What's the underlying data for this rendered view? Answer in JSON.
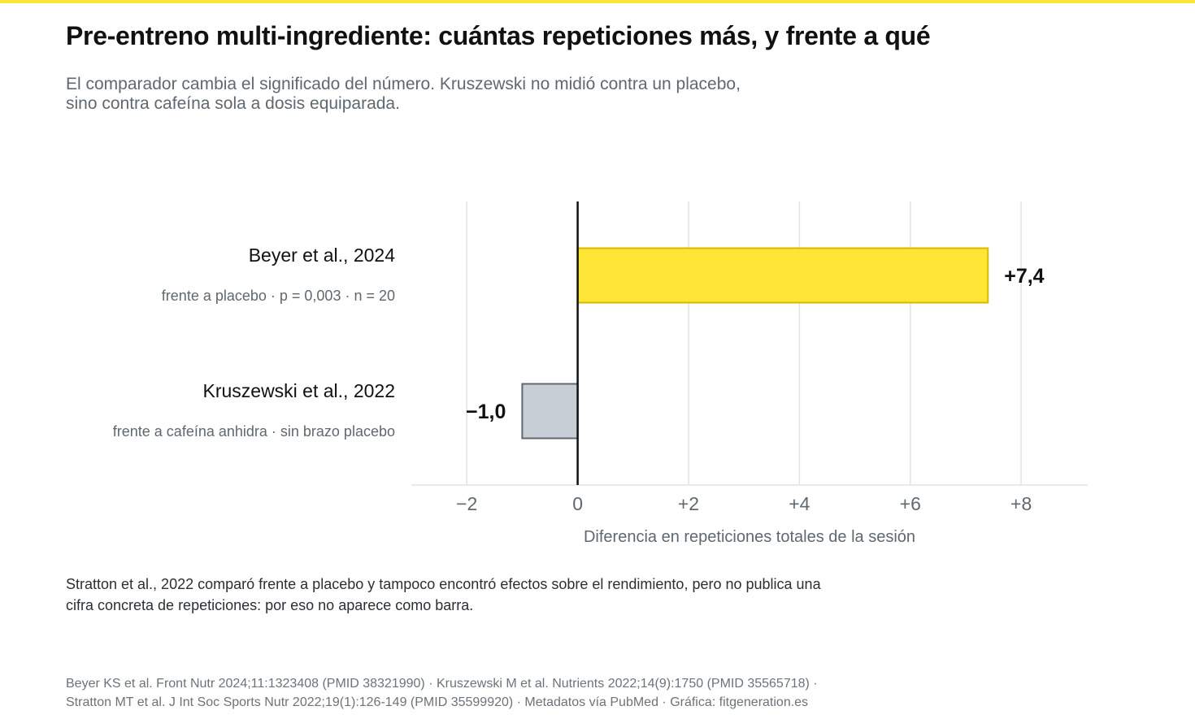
{
  "colors": {
    "accent": "#ffe636",
    "highlight_bar": "#ffe636",
    "highlight_bar_stroke": "#d9b800",
    "muted_bar": "#c8ced6",
    "muted_bar_stroke": "#5f6870",
    "zero_line": "#111111",
    "grid": "#e3e3e3",
    "text_muted": "#5f6870"
  },
  "header": {
    "title": "Pre-entreno multi-ingrediente: cuántas repeticiones más, y frente a qué",
    "subtitle_lines": [
      "El comparador cambia el significado del número. Kruszewski no midió contra un placebo,",
      "sino contra cafeína sola a dosis equiparada."
    ]
  },
  "chart_data": {
    "type": "bar",
    "orientation": "horizontal",
    "categories": [
      "Beyer et al., 2024",
      "Kruszewski et al., 2022"
    ],
    "category_notes": [
      "frente a placebo · p = 0,003 · n = 20",
      "frente a cafeína anhidra · sin brazo placebo"
    ],
    "values": [
      7.4,
      -1.0
    ],
    "value_labels": [
      "+7,4",
      "−1,0"
    ],
    "bar_styles": [
      "highlight",
      "muted"
    ],
    "xlabel": "Diferencia en repeticiones totales de la sesión",
    "xlim": [
      -3,
      9.2
    ],
    "xticks": [
      -2,
      0,
      2,
      4,
      6,
      8
    ],
    "xtick_labels": [
      "−2",
      "0",
      "+2",
      "+4",
      "+6",
      "+8"
    ],
    "grid": true,
    "zero_line": true
  },
  "note_lines": [
    "Stratton et al., 2022 comparó frente a placebo y tampoco encontró efectos sobre el rendimiento, pero no publica una",
    "cifra concreta de repeticiones: por eso no aparece como barra."
  ],
  "footer_lines": [
    "Beyer KS et al. Front Nutr 2024;11:1323408 (PMID 38321990) · Kruszewski M et al. Nutrients 2022;14(9):1750 (PMID 35565718) ·",
    "Stratton MT et al. J Int Soc Sports Nutr 2022;19(1):126-149 (PMID 35599920) · Metadatos vía PubMed · Gráfica: fitgeneration.es"
  ]
}
